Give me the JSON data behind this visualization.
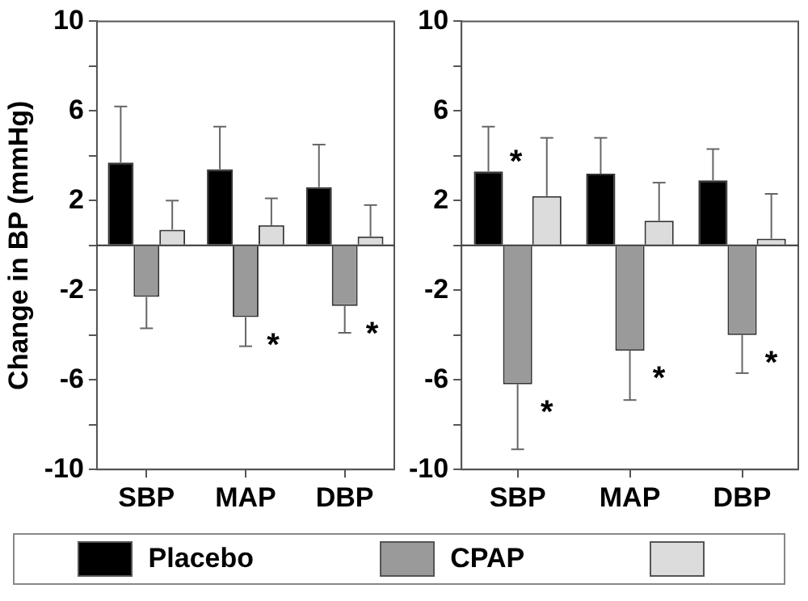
{
  "chart_data": [
    {
      "type": "bar",
      "ylabel": "Change in BP (mmHg)",
      "categories": [
        "SBP",
        "MAP",
        "DBP"
      ],
      "ylim": [
        -10,
        10
      ],
      "yticks": [
        -10,
        {
          "value": -8,
          "label": null
        },
        -6,
        {
          "value": -4,
          "label": null
        },
        -2,
        {
          "value": 0,
          "label": null
        },
        2,
        {
          "value": 4,
          "label": null
        },
        6,
        {
          "value": 8,
          "label": null
        },
        10
      ],
      "legend": "bottom",
      "series": [
        {
          "name": "Placebo",
          "color": "#000000",
          "values": [
            3.7,
            3.4,
            2.6
          ],
          "errors": [
            [
              3.7,
              6.2
            ],
            [
              3.4,
              5.3
            ],
            [
              2.6,
              4.5
            ]
          ]
        },
        {
          "name": "CPAP",
          "color": "#9a9a9a",
          "values": [
            -2.3,
            -3.2,
            -2.7
          ],
          "errors": [
            [
              -3.7,
              -2.3
            ],
            [
              -4.5,
              -3.2
            ],
            [
              -3.9,
              -2.7
            ]
          ]
        },
        {
          "color": "#dcdcdc",
          "values": [
            0.7,
            0.9,
            0.4
          ],
          "errors": [
            [
              0.7,
              2.0
            ],
            [
              0.9,
              2.1
            ],
            [
              0.4,
              1.8
            ]
          ]
        }
      ],
      "annotations": [
        {
          "text": "*",
          "x": "MAP",
          "y": -3.2
        },
        {
          "text": "*",
          "x": "DBP",
          "y": -2.7
        }
      ]
    },
    {
      "type": "bar",
      "categories": [
        "SBP",
        "MAP",
        "DBP"
      ],
      "ylim": [
        -10,
        10
      ],
      "yticks": [
        -10,
        {
          "value": -8,
          "label": null
        },
        -6,
        {
          "value": -4,
          "label": null
        },
        -2,
        {
          "value": 0,
          "label": null
        },
        2,
        {
          "value": 4,
          "label": null
        },
        6,
        {
          "value": 8,
          "label": null
        },
        10
      ],
      "series": [
        {
          "color": "#000000",
          "values": [
            3.3,
            3.2,
            2.9
          ],
          "errors": [
            [
              3.3,
              5.3
            ],
            [
              3.2,
              4.8
            ],
            [
              2.9,
              4.3
            ]
          ]
        },
        {
          "color": "#9a9a9a",
          "values": [
            -6.2,
            -4.7,
            -4.0
          ],
          "errors": [
            [
              -9.1,
              -6.2
            ],
            [
              -6.9,
              -4.7
            ],
            [
              -5.7,
              -4.0
            ]
          ]
        },
        {
          "color": "#dcdcdc",
          "values": [
            2.2,
            1.1,
            0.3
          ],
          "errors": [
            [
              2.2,
              4.8
            ],
            [
              1.1,
              2.8
            ],
            [
              0.3,
              2.3
            ]
          ]
        }
      ],
      "annotations": [
        "*",
        {
          "text": "*",
          "x": "SBP",
          "y": -6.2
        },
        {
          "text": "*",
          "x": "MAP",
          "y": -4.7
        },
        {
          "text": "*",
          "x": "DBP",
          "y": -4.0
        }
      ]
    }
  ]
}
